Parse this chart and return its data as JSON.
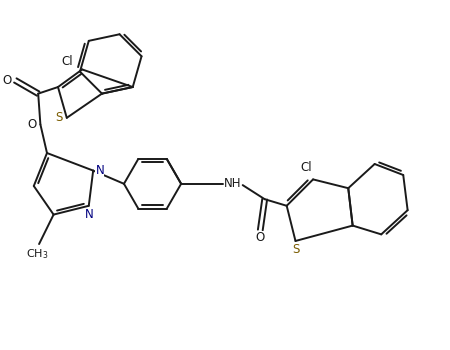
{
  "bg_color": "#ffffff",
  "line_color": "#1a1a1a",
  "N_color": "#000080",
  "S_color": "#7a5c00",
  "lw": 1.4,
  "fs": 8.5,
  "xlim": [
    0,
    10
  ],
  "ylim": [
    0,
    7.5
  ],
  "figw": 4.5,
  "figh": 3.5,
  "dpi": 100
}
